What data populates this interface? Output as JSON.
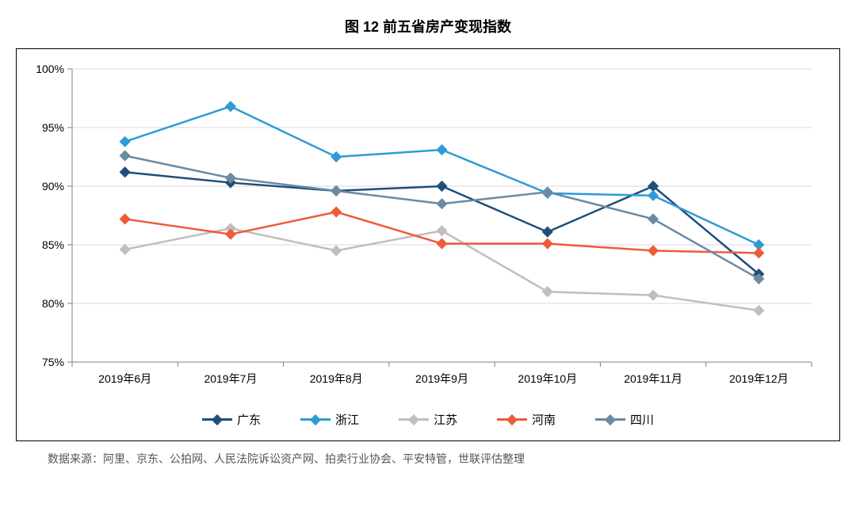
{
  "title": "图 12 前五省房产变现指数",
  "source_note": "数据来源：阿里、京东、公拍网、人民法院诉讼资产网、拍卖行业协会、平安特管，世联评估整理",
  "chart": {
    "type": "line",
    "background_color": "#ffffff",
    "border_color": "#000000",
    "grid_color": "#d9d9d9",
    "axis_color": "#808080",
    "tick_color": "#808080",
    "ylim": [
      75,
      100
    ],
    "ytick_step": 5,
    "yticks": [
      "75%",
      "80%",
      "85%",
      "90%",
      "95%",
      "100%"
    ],
    "categories": [
      "2019年6月",
      "2019年7月",
      "2019年8月",
      "2019年9月",
      "2019年10月",
      "2019年11月",
      "2019年12月"
    ],
    "label_fontsize": 14,
    "legend_fontsize": 15,
    "line_width": 2.5,
    "marker_size": 5,
    "marker_style": "diamond",
    "series": [
      {
        "name": "广东",
        "color": "#1f4e79",
        "values": [
          91.2,
          90.3,
          89.6,
          90.0,
          86.1,
          90.0,
          82.5
        ]
      },
      {
        "name": "浙江",
        "color": "#2e9bd6",
        "values": [
          93.8,
          96.8,
          92.5,
          93.1,
          89.4,
          89.2,
          85.0
        ]
      },
      {
        "name": "江苏",
        "color": "#bfbfbf",
        "values": [
          84.6,
          86.4,
          84.5,
          86.2,
          81.0,
          80.7,
          79.4
        ]
      },
      {
        "name": "河南",
        "color": "#ed5b3a",
        "values": [
          87.2,
          85.9,
          87.8,
          85.1,
          85.1,
          84.5,
          84.3
        ]
      },
      {
        "name": "四川",
        "color": "#6b8aa3",
        "values": [
          92.6,
          90.7,
          89.6,
          88.5,
          89.5,
          87.2,
          82.1
        ]
      }
    ]
  }
}
